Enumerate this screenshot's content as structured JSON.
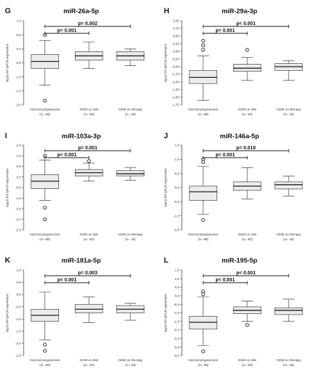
{
  "colors": {
    "box_fill": "#ececec",
    "line": "#1a1a1a",
    "axis": "#222222"
  },
  "chart_data": [
    {
      "type": "box",
      "panel": "G",
      "title": "miR-26a-5p",
      "ylabel": "log10 RT-qPCR expression",
      "ylim": [
        -2.0,
        1.0
      ],
      "yticks": [
        1.0,
        0.5,
        0.0,
        -0.5,
        -1.0,
        -1.5,
        -2.0
      ],
      "ytick_labels": [
        "1,0",
        "0,5",
        "0,0",
        "-0,5",
        "-1,0",
        "-1,5",
        "-2,0"
      ],
      "categories": [
        "Normal pregnancies",
        "GDM on diet",
        "GDM on therapy"
      ],
      "category_n": [
        "(n= 89)",
        "(n= 93)",
        "(n= 18)"
      ],
      "boxes": [
        {
          "whisker_low": -1.3,
          "q1": -0.7,
          "median": -0.45,
          "q3": -0.2,
          "whisker_high": 0.3
        },
        {
          "whisker_low": -0.7,
          "q1": -0.4,
          "median": -0.25,
          "q3": -0.1,
          "whisker_high": 0.25
        },
        {
          "whisker_low": -0.6,
          "q1": -0.4,
          "median": -0.25,
          "q3": -0.1,
          "whisker_high": 0.0
        }
      ],
      "outliers": [
        {
          "group": 0,
          "y": 0.5
        },
        {
          "group": 0,
          "y": -1.85
        }
      ],
      "significance": [
        {
          "from": 0,
          "to": 2,
          "label": "p= 0.002"
        },
        {
          "from": 0,
          "to": 1,
          "label": "p< 0.001"
        }
      ]
    },
    {
      "type": "box",
      "panel": "H",
      "title": "miR-29a-3p",
      "ylabel": "log10 RT-qPCR expression",
      "ylim": [
        -1.75,
        1.0
      ],
      "yticks": [
        1.0,
        0.75,
        0.5,
        0.25,
        0.0,
        -0.25,
        -0.5,
        -0.75,
        -1.0,
        -1.25,
        -1.5,
        -1.75
      ],
      "ytick_labels": [
        "1,00",
        "0,75",
        "0,50",
        "0,25",
        "0,00",
        "-0,25",
        "-0,50",
        "-0,75",
        "-1,00",
        "-1,25",
        "-1,50",
        "-1,75"
      ],
      "categories": [
        "Normal pregnancies",
        "GDM on diet",
        "GDM on therapy"
      ],
      "category_n": [
        "(n= 89)",
        "(n= 93)",
        "(n= 18)"
      ],
      "boxes": [
        {
          "whisker_low": -1.6,
          "q1": -1.05,
          "median": -0.85,
          "q3": -0.62,
          "whisker_high": -0.15
        },
        {
          "whisker_low": -0.95,
          "q1": -0.65,
          "median": -0.55,
          "q3": -0.42,
          "whisker_high": -0.2
        },
        {
          "whisker_low": -0.95,
          "q1": -0.62,
          "median": -0.5,
          "q3": -0.4,
          "whisker_high": -0.3
        }
      ],
      "outliers": [
        {
          "group": 0,
          "y": 0.35
        },
        {
          "group": 0,
          "y": 0.2
        },
        {
          "group": 0,
          "y": 0.05
        },
        {
          "group": 1,
          "y": 0.05
        }
      ],
      "significance": [
        {
          "from": 0,
          "to": 2,
          "label": "p< 0.001"
        },
        {
          "from": 0,
          "to": 1,
          "label": "p< 0.001"
        }
      ]
    },
    {
      "type": "box",
      "panel": "I",
      "title": "miR-103a-3p",
      "ylabel": "log10 RT-qPCR expression",
      "ylim": [
        -2.5,
        1.5
      ],
      "yticks": [
        1.5,
        1.0,
        0.5,
        0.0,
        -0.5,
        -1.0,
        -1.5,
        -2.0,
        -2.5
      ],
      "ytick_labels": [
        "1,5",
        "1,0",
        "0,5",
        "0,0",
        "-0,5",
        "-1,0",
        "-1,5",
        "-2,0",
        "-2,5"
      ],
      "categories": [
        "Normal pregnancies",
        "GDM on diet",
        "GDM on therapy"
      ],
      "category_n": [
        "(n= 89)",
        "(n= 93)",
        "(n= 18)"
      ],
      "boxes": [
        {
          "whisker_low": -1.1,
          "q1": -0.55,
          "median": -0.2,
          "q3": 0.1,
          "whisker_high": 0.8
        },
        {
          "whisker_low": -0.2,
          "q1": 0.05,
          "median": 0.2,
          "q3": 0.35,
          "whisker_high": 0.65
        },
        {
          "whisker_low": -0.15,
          "q1": 0.05,
          "median": 0.15,
          "q3": 0.3,
          "whisker_high": 0.45
        }
      ],
      "outliers": [
        {
          "group": 0,
          "y": 1.0
        },
        {
          "group": 0,
          "y": -1.45
        },
        {
          "group": 0,
          "y": -2.0
        },
        {
          "group": 1,
          "y": 0.75
        }
      ],
      "significance": [
        {
          "from": 0,
          "to": 2,
          "label": "p= 0.001"
        },
        {
          "from": 0,
          "to": 1,
          "label": "p< 0.001"
        }
      ]
    },
    {
      "type": "box",
      "panel": "J",
      "title": "miR-146a-5p",
      "ylabel": "log10 RT-qPCR expression",
      "ylim": [
        -1.5,
        1.5
      ],
      "yticks": [
        1.5,
        1.0,
        0.5,
        0.0,
        -0.5,
        -1.0,
        -1.5
      ],
      "ytick_labels": [
        "1,5",
        "1,0",
        "0,5",
        "0,0",
        "-0,5",
        "-1,0",
        "-1,5"
      ],
      "categories": [
        "Normal pregnancies",
        "GDM on diet",
        "GDM on therapy"
      ],
      "category_n": [
        "(n= 89)",
        "(n= 93)",
        "(n= 18)"
      ],
      "boxes": [
        {
          "whisker_low": -0.95,
          "q1": -0.45,
          "median": -0.15,
          "q3": 0.05,
          "whisker_high": 0.75
        },
        {
          "whisker_low": -0.4,
          "q1": -0.1,
          "median": 0.05,
          "q3": 0.2,
          "whisker_high": 0.7
        },
        {
          "whisker_low": -0.3,
          "q1": -0.05,
          "median": 0.1,
          "q3": 0.2,
          "whisker_high": 0.4
        }
      ],
      "outliers": [
        {
          "group": 0,
          "y": 1.0
        },
        {
          "group": 0,
          "y": 0.9
        },
        {
          "group": 0,
          "y": -1.15
        }
      ],
      "significance": [
        {
          "from": 0,
          "to": 2,
          "label": "p= 0.019"
        },
        {
          "from": 0,
          "to": 1,
          "label": "p< 0.001"
        }
      ]
    },
    {
      "type": "box",
      "panel": "K",
      "title": "miR-181a-5p",
      "ylabel": "log10 RT-qPCR expression",
      "ylim": [
        -2.5,
        1.0
      ],
      "yticks": [
        1.0,
        0.5,
        0.0,
        -0.5,
        -1.0,
        -1.5,
        -2.0,
        -2.5
      ],
      "ytick_labels": [
        "1,0",
        "0,5",
        "0,0",
        "-0,5",
        "-1,0",
        "-1,5",
        "-2,0",
        "-2,5"
      ],
      "categories": [
        "Normal pregnancies",
        "GDM on diet",
        "GDM on therapy"
      ],
      "category_n": [
        "(n= 89)",
        "(n= 93)",
        "(n= 18)"
      ],
      "boxes": [
        {
          "whisker_low": -1.85,
          "q1": -1.1,
          "median": -0.85,
          "q3": -0.6,
          "whisker_high": 0.1
        },
        {
          "whisker_low": -1.15,
          "q1": -0.75,
          "median": -0.6,
          "q3": -0.4,
          "whisker_high": -0.1
        },
        {
          "whisker_low": -1.05,
          "q1": -0.75,
          "median": -0.6,
          "q3": -0.45,
          "whisker_high": -0.35
        }
      ],
      "outliers": [
        {
          "group": 0,
          "y": -2.05
        },
        {
          "group": 0,
          "y": -2.3
        }
      ],
      "significance": [
        {
          "from": 0,
          "to": 2,
          "label": "p= 0.003"
        },
        {
          "from": 0,
          "to": 1,
          "label": "p< 0.001"
        }
      ]
    },
    {
      "type": "box",
      "panel": "L",
      "title": "miR-195-5p",
      "ylabel": "log10 RT-qPCR expression",
      "ylim": [
        -3.5,
        1.5
      ],
      "yticks": [
        1.5,
        1.0,
        0.5,
        0.0,
        -0.5,
        -1.0,
        -1.5,
        -2.0,
        -2.5,
        -3.0,
        -3.5
      ],
      "ytick_labels": [
        "1,5",
        "1,0",
        "0,5",
        "0,0",
        "-0,5",
        "-1,0",
        "-1,5",
        "-2,0",
        "-2,5",
        "-3,0",
        "-3,5"
      ],
      "categories": [
        "Normal pregnancies",
        "GDM on diet",
        "GDM on therapy"
      ],
      "category_n": [
        "(n= 89)",
        "(n= 93)",
        "(n= 18)"
      ],
      "boxes": [
        {
          "whisker_low": -2.9,
          "q1": -1.95,
          "median": -1.55,
          "q3": -1.2,
          "whisker_high": -0.05
        },
        {
          "whisker_low": -1.5,
          "q1": -1.05,
          "median": -0.85,
          "q3": -0.65,
          "whisker_high": -0.3
        },
        {
          "whisker_low": -1.5,
          "q1": -1.1,
          "median": -0.85,
          "q3": -0.7,
          "whisker_high": -0.2
        }
      ],
      "outliers": [
        {
          "group": 0,
          "y": 0.25
        },
        {
          "group": 0,
          "y": 0.1
        },
        {
          "group": 0,
          "y": -3.25
        },
        {
          "group": 1,
          "y": -1.7
        }
      ],
      "significance": [
        {
          "from": 0,
          "to": 2,
          "label": "p< 0.001"
        },
        {
          "from": 0,
          "to": 1,
          "label": "p< 0.001"
        }
      ]
    }
  ]
}
